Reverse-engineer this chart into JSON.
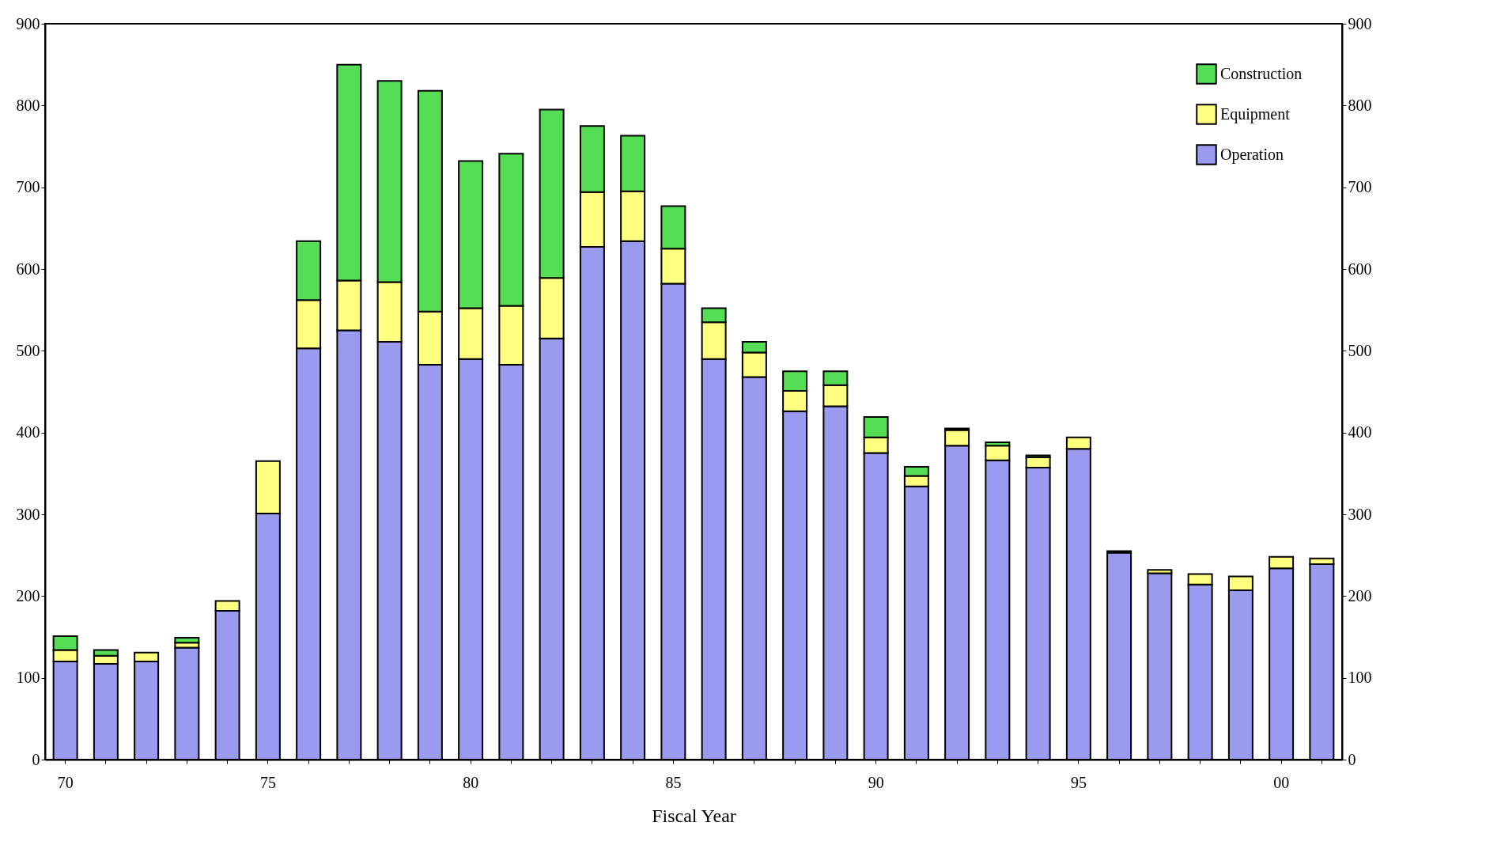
{
  "chart_data": {
    "type": "bar",
    "stacked": true,
    "xlabel": "Fiscal Year",
    "categories": [
      "70",
      null,
      null,
      null,
      null,
      "75",
      null,
      null,
      null,
      null,
      "80",
      null,
      null,
      null,
      null,
      "85",
      null,
      null,
      null,
      null,
      "90",
      null,
      null,
      null,
      null,
      "95",
      null,
      null,
      null,
      null,
      "00",
      null
    ],
    "series": [
      {
        "name": "Operation",
        "color": "#9a9aee",
        "values": [
          120,
          117,
          120,
          137,
          182,
          301,
          503,
          525,
          511,
          483,
          490,
          483,
          515,
          627,
          634,
          582,
          490,
          468,
          426,
          432,
          375,
          334,
          384,
          366,
          357,
          380,
          253,
          228,
          214,
          207,
          234,
          239
        ]
      },
      {
        "name": "Equipment",
        "color": "#ffff80",
        "values": [
          14,
          10,
          11,
          6,
          12,
          64,
          59,
          61,
          73,
          65,
          62,
          72,
          74,
          67,
          61,
          43,
          45,
          30,
          25,
          26,
          19,
          13,
          19,
          18,
          13,
          14,
          2,
          4,
          13,
          17,
          14,
          7
        ]
      },
      {
        "name": "Construction",
        "color": "#55dd55",
        "values": [
          17,
          7,
          null,
          6,
          null,
          null,
          72,
          264,
          246,
          270,
          180,
          186,
          206,
          81,
          68,
          52,
          17,
          13,
          24,
          17,
          25,
          11,
          2,
          4,
          2,
          null,
          null,
          null,
          null,
          null,
          null,
          null
        ]
      }
    ],
    "ylim": [
      0,
      900
    ],
    "yticks": [
      0,
      100,
      200,
      300,
      400,
      500,
      600,
      700,
      800,
      900
    ],
    "y2lim": [
      0,
      900
    ],
    "y2ticks": [
      0,
      100,
      200,
      300,
      400,
      500,
      600,
      700,
      800,
      900
    ],
    "legend": "top right",
    "grid": false
  }
}
